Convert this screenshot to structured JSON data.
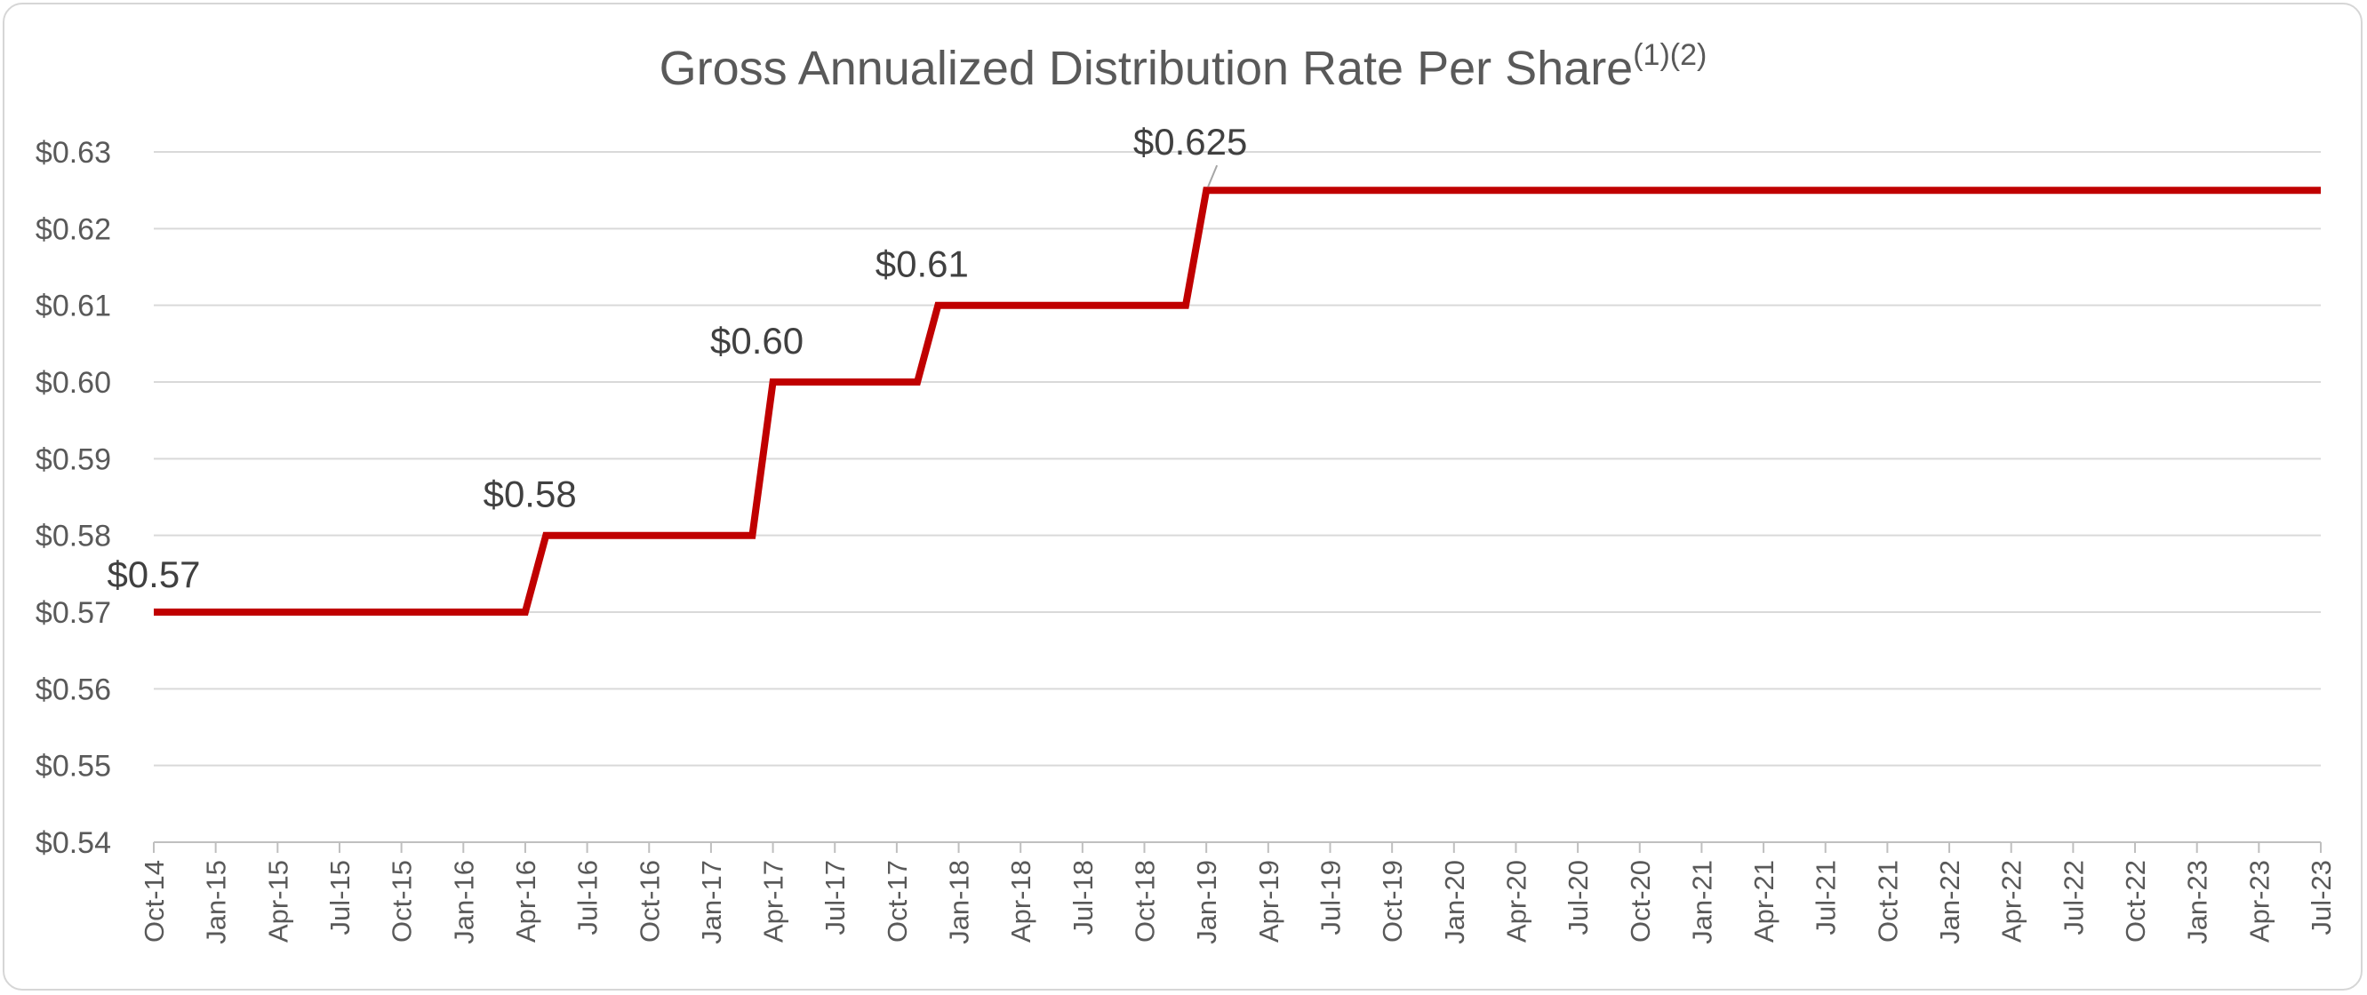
{
  "chart_data": {
    "type": "line",
    "title": "Gross Annualized Distribution Rate Per Share",
    "title_superscript": "(1)(2)",
    "xlabel": "",
    "ylabel": "",
    "ylim": [
      0.54,
      0.63
    ],
    "ytick_step": 0.01,
    "y_tick_labels": [
      "$0.54",
      "$0.55",
      "$0.56",
      "$0.57",
      "$0.58",
      "$0.59",
      "$0.60",
      "$0.61",
      "$0.62",
      "$0.63"
    ],
    "x_tick_labels": [
      "Oct-14",
      "Jan-15",
      "Apr-15",
      "Jul-15",
      "Oct-15",
      "Jan-16",
      "Apr-16",
      "Jul-16",
      "Oct-16",
      "Jan-17",
      "Apr-17",
      "Jul-17",
      "Oct-17",
      "Jan-18",
      "Apr-18",
      "Jul-18",
      "Oct-18",
      "Jan-19",
      "Apr-19",
      "Jul-19",
      "Oct-19",
      "Jan-20",
      "Apr-20",
      "Jul-20",
      "Oct-20",
      "Jan-21",
      "Apr-21",
      "Jul-21",
      "Oct-21",
      "Jan-22",
      "Apr-22",
      "Jul-22",
      "Oct-22",
      "Jan-23",
      "Apr-23",
      "Jul-23"
    ],
    "grid": true,
    "series": [
      {
        "name": "Gross Annualized Distribution Rate Per Share",
        "color": "#c00000",
        "points": [
          {
            "x": 0,
            "y": 0.57
          },
          {
            "x": 18,
            "y": 0.57
          },
          {
            "x": 19,
            "y": 0.58
          },
          {
            "x": 29,
            "y": 0.58
          },
          {
            "x": 30,
            "y": 0.6
          },
          {
            "x": 37,
            "y": 0.6
          },
          {
            "x": 38,
            "y": 0.61
          },
          {
            "x": 50,
            "y": 0.61
          },
          {
            "x": 51,
            "y": 0.625
          },
          {
            "x": 105,
            "y": 0.625
          }
        ]
      }
    ],
    "data_labels": [
      {
        "text": "$0.57",
        "x": 0,
        "y": 0.57
      },
      {
        "text": "$0.58",
        "x": 19,
        "y": 0.58
      },
      {
        "text": "$0.60",
        "x": 30,
        "y": 0.6
      },
      {
        "text": "$0.61",
        "x": 38,
        "y": 0.61
      },
      {
        "text": "$0.625",
        "x": 51,
        "y": 0.625
      }
    ]
  }
}
